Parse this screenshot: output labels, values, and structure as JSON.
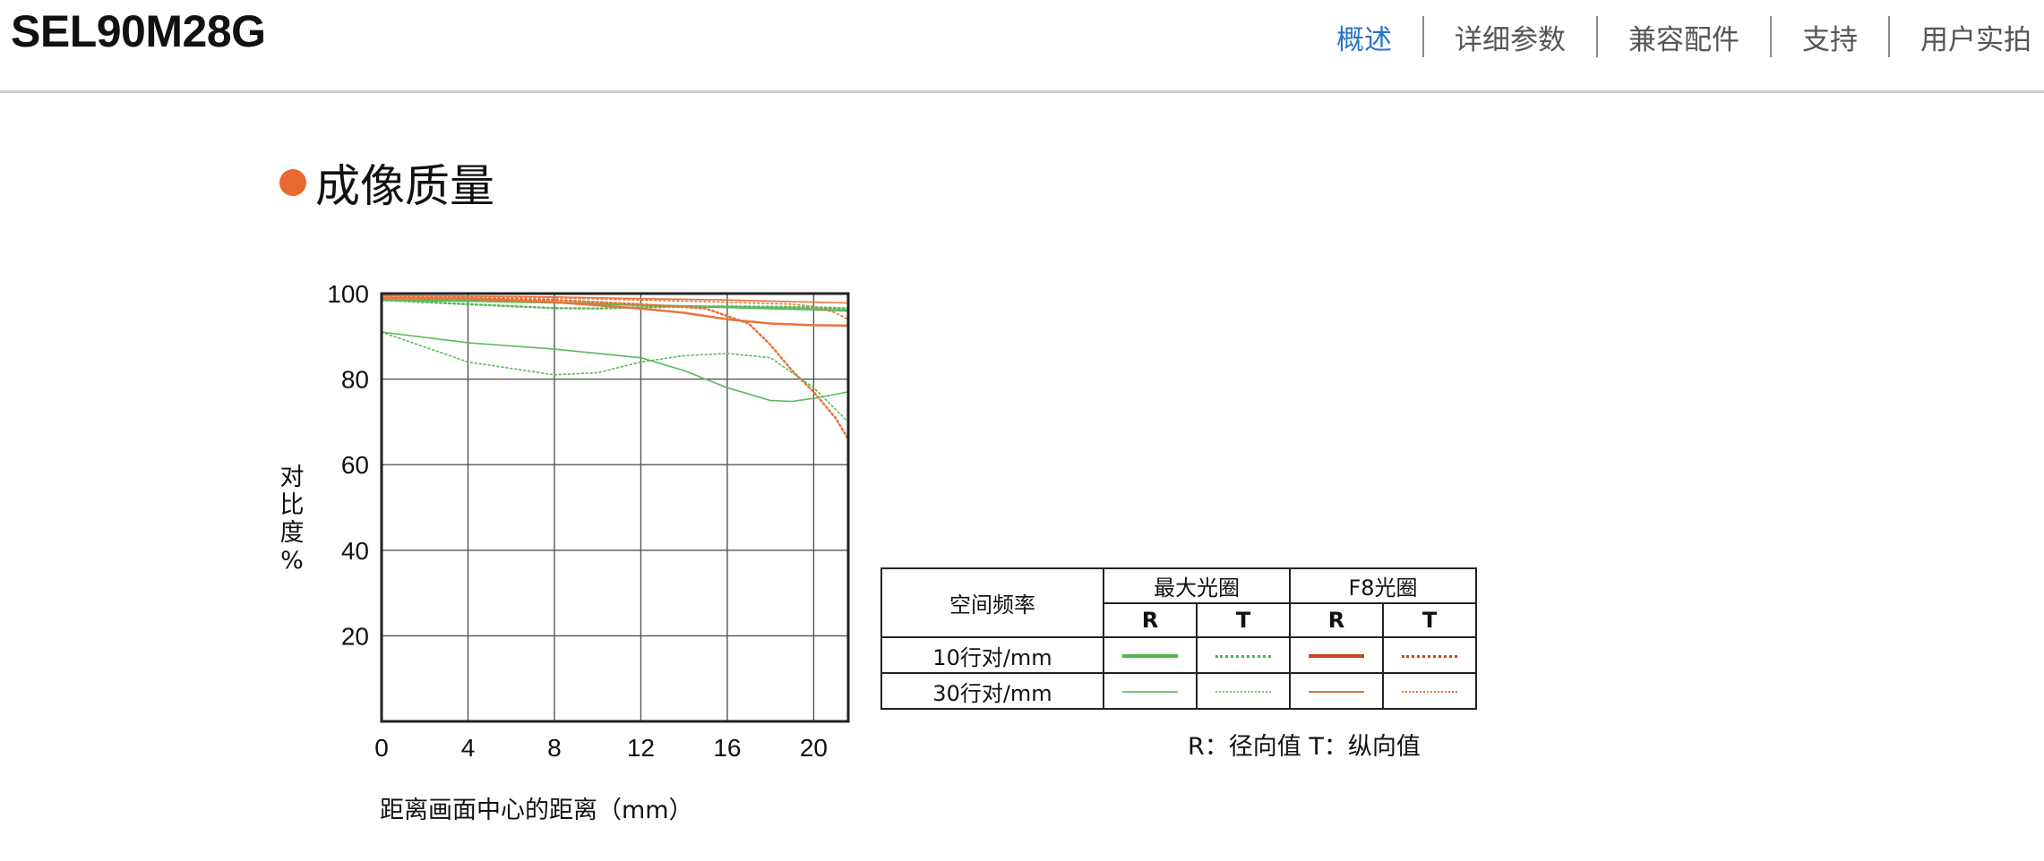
{
  "header": {
    "product_title": "SEL90M28G",
    "nav": [
      {
        "label": "概述",
        "active": true
      },
      {
        "label": "详细参数",
        "active": false
      },
      {
        "label": "兼容配件",
        "active": false
      },
      {
        "label": "支持",
        "active": false
      },
      {
        "label": "用户实拍",
        "active": false
      }
    ]
  },
  "section": {
    "title": "成像质量",
    "bullet_color": "#e86a31"
  },
  "chart_data": {
    "type": "line",
    "ylabel": "对比度%",
    "xlabel": "距离画面中心的距离（mm）",
    "xlim": [
      0,
      21.6
    ],
    "ylim": [
      0,
      100
    ],
    "xticks": [
      "0",
      "4",
      "8",
      "12",
      "16",
      "20"
    ],
    "yticks": [
      "100",
      "80",
      "60",
      "40",
      "20"
    ],
    "grid": true,
    "series": [
      {
        "color": "#5cb85c",
        "style": "solid",
        "width": 2.5,
        "x": [
          0,
          4,
          8,
          12,
          16,
          20,
          21.6
        ],
        "y": [
          98.5,
          98.3,
          97.9,
          97.3,
          96.8,
          96.3,
          96.0
        ]
      },
      {
        "color": "#5cb85c",
        "style": "dotted",
        "width": 2.5,
        "x": [
          0,
          4,
          8,
          10,
          12,
          16,
          20,
          21.6
        ],
        "y": [
          98.5,
          97.5,
          96.6,
          96.5,
          96.8,
          97.0,
          96.8,
          96.5
        ]
      },
      {
        "color": "#e8743b",
        "style": "solid",
        "width": 2.5,
        "x": [
          0,
          4,
          8,
          12,
          14,
          16,
          18,
          20,
          21.6
        ],
        "y": [
          99.0,
          98.8,
          98.0,
          96.5,
          95.5,
          94.0,
          93.0,
          92.6,
          92.5
        ]
      },
      {
        "color": "#e8743b",
        "style": "dotted",
        "width": 2.5,
        "x": [
          0,
          4,
          8,
          12,
          15,
          17,
          18,
          19,
          20,
          21,
          21.6
        ],
        "y": [
          99.0,
          99.0,
          98.5,
          97.5,
          96.5,
          93.0,
          88.0,
          82.0,
          77.0,
          71.0,
          66.0
        ]
      },
      {
        "color": "#5cb85c",
        "style": "solid",
        "width": 1.6,
        "x": [
          0,
          4,
          8,
          12,
          14,
          16,
          18,
          19,
          20,
          21.6
        ],
        "y": [
          91.0,
          88.5,
          87.0,
          85.0,
          82.0,
          78.0,
          75.0,
          74.8,
          75.5,
          77.0
        ]
      },
      {
        "color": "#5cb85c",
        "style": "dotted",
        "width": 1.6,
        "x": [
          0,
          4,
          8,
          10,
          12,
          14,
          16,
          18,
          20,
          21.6
        ],
        "y": [
          91.0,
          84.0,
          81.0,
          81.5,
          84.0,
          85.5,
          86.0,
          85.0,
          78.0,
          70.0
        ]
      },
      {
        "color": "#e8743b",
        "style": "solid",
        "width": 1.6,
        "x": [
          0,
          4,
          8,
          12,
          16,
          20,
          21.6
        ],
        "y": [
          99.5,
          99.4,
          99.2,
          98.8,
          98.5,
          98.0,
          97.8
        ]
      },
      {
        "color": "#e8743b",
        "style": "dotted",
        "width": 1.6,
        "x": [
          0,
          4,
          8,
          12,
          16,
          19,
          20,
          21,
          21.6
        ],
        "y": [
          99.5,
          99.3,
          99.0,
          98.5,
          98.0,
          97.5,
          97.0,
          95.5,
          94.0
        ]
      }
    ]
  },
  "legend": {
    "header_col": "空间频率",
    "groups": [
      "最大光圈",
      "F8光圈"
    ],
    "subheaders": [
      "R",
      "T",
      "R",
      "T"
    ],
    "rows": [
      {
        "label": "10行对/mm"
      },
      {
        "label": "30行对/mm"
      }
    ],
    "colors": {
      "green": "#4cb648",
      "orange": "#d8581f"
    },
    "note": "R：径向值   T：纵向值"
  }
}
